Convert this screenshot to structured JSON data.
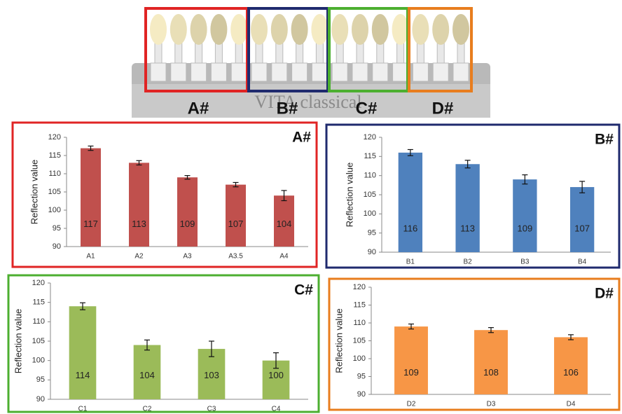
{
  "shade_guide": {
    "labels": [
      "A#",
      "B#",
      "C#",
      "D#"
    ],
    "brand": "VITA classical"
  },
  "chart_data": [
    {
      "type": "bar",
      "title": "A#",
      "y_label": "Reflection value",
      "categories": [
        "A1",
        "A2",
        "A3",
        "A3.5",
        "A4"
      ],
      "values": [
        117,
        113,
        109,
        107,
        104
      ],
      "errors": [
        0.6,
        0.6,
        0.5,
        0.6,
        1.4
      ],
      "color": "#c0504d",
      "border_color": "#e02424",
      "ylim": [
        90,
        120
      ],
      "yticks": [
        90,
        95,
        100,
        105,
        110,
        115,
        120
      ]
    },
    {
      "type": "bar",
      "title": "B#",
      "y_label": "Reflection value",
      "categories": [
        "B1",
        "B2",
        "B3",
        "B4"
      ],
      "values": [
        116,
        113,
        109,
        107
      ],
      "errors": [
        0.8,
        1.0,
        1.2,
        1.5
      ],
      "color": "#4f81bd",
      "border_color": "#1f2a6e",
      "ylim": [
        90,
        120
      ],
      "yticks": [
        90,
        95,
        100,
        105,
        110,
        115,
        120
      ]
    },
    {
      "type": "bar",
      "title": "C#",
      "y_label": "Reflection value",
      "categories": [
        "C1",
        "C2",
        "C3",
        "C4"
      ],
      "values": [
        114,
        104,
        103,
        100
      ],
      "errors": [
        0.9,
        1.3,
        2.0,
        2.0
      ],
      "color": "#9bbb59",
      "border_color": "#4caf30",
      "ylim": [
        90,
        120
      ],
      "yticks": [
        90,
        95,
        100,
        105,
        110,
        115,
        120
      ]
    },
    {
      "type": "bar",
      "title": "D#",
      "y_label": "Reflection value",
      "categories": [
        "D2",
        "D3",
        "D4"
      ],
      "values": [
        109,
        108,
        106
      ],
      "errors": [
        0.7,
        0.7,
        0.7
      ],
      "color": "#f79646",
      "border_color": "#e87d1e",
      "ylim": [
        90,
        120
      ],
      "yticks": [
        90,
        95,
        100,
        105,
        110,
        115,
        120
      ]
    }
  ]
}
